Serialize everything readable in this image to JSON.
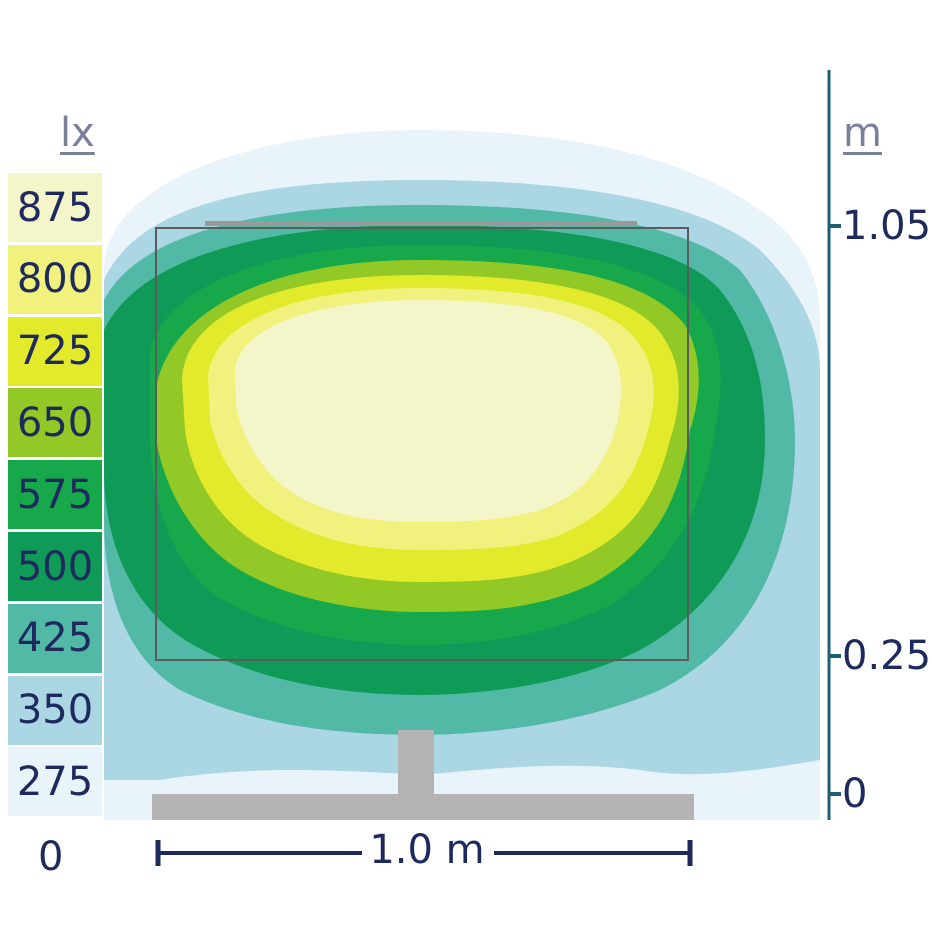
{
  "legend": {
    "unit": "lx",
    "bottom_label": "0",
    "items": [
      {
        "label": "875",
        "color": "#f4f6c9"
      },
      {
        "label": "800",
        "color": "#f0f27d"
      },
      {
        "label": "725",
        "color": "#e3ea2c"
      },
      {
        "label": "650",
        "color": "#93c927"
      },
      {
        "label": "575",
        "color": "#17a84b"
      },
      {
        "label": "500",
        "color": "#0f9a57"
      },
      {
        "label": "425",
        "color": "#52b9a6"
      },
      {
        "label": "350",
        "color": "#abd6e3"
      },
      {
        "label": "275",
        "color": "#e8f4f9"
      }
    ]
  },
  "axis": {
    "unit": "m",
    "ticks": [
      {
        "label": "1.05",
        "value": 1.05
      },
      {
        "label": "0.25",
        "value": 0.25
      },
      {
        "label": "0",
        "value": 0
      }
    ]
  },
  "width_indicator": {
    "label": "1.0 m"
  },
  "colors": {
    "frame": "#5b5b5b",
    "stand": "#b3b3b3",
    "axis": "#1f5f74",
    "text": "#1e2a5e"
  }
}
